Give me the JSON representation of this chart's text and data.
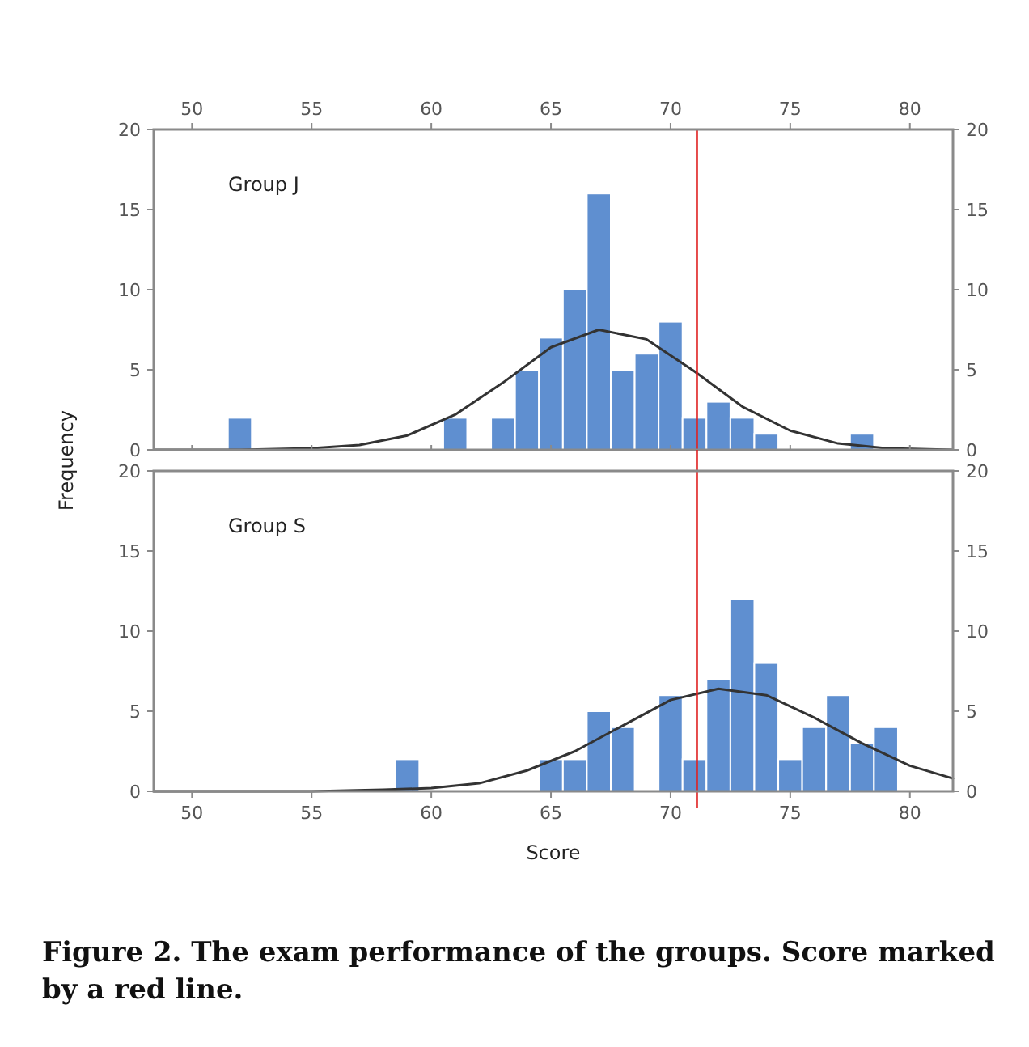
{
  "chart_data": [
    {
      "type": "histogram",
      "title": "Group J",
      "ylabel": "Frequency",
      "xlim": [
        48.4,
        81.8
      ],
      "xticks": [
        50,
        55,
        60,
        65,
        70,
        75,
        80
      ],
      "tick_labels": "y",
      "x2lim": [
        48.4,
        81.8
      ],
      "x2ticks": [
        50,
        55,
        60,
        65,
        70,
        75,
        80
      ],
      "ylim": [
        0,
        20
      ],
      "yticks": [
        0,
        5,
        10,
        15,
        20
      ],
      "y2lim": [
        0,
        20
      ],
      "y2ticks": [
        0,
        5,
        10,
        15,
        20
      ],
      "series": [
        {
          "color": "#5f8fd0",
          "bins": [
            51.5,
            52.5,
            53.5,
            54.5,
            55.5,
            56.5,
            57.5,
            58.5,
            59.5,
            60.5,
            61.5,
            62.5,
            63.5,
            64.5,
            65.5,
            66.5,
            67.5,
            68.5,
            69.5,
            70.5,
            71.5,
            72.5,
            73.5,
            74.5,
            75.5,
            76.5,
            77.5,
            78.5
          ],
          "values": [
            2,
            0,
            0,
            0,
            0,
            0,
            0,
            0,
            0,
            2,
            0,
            2,
            5,
            7,
            10,
            16,
            5,
            6,
            8,
            2,
            3,
            2,
            1,
            0,
            0,
            0,
            1
          ]
        },
        {
          "type": "line",
          "color": "#333333",
          "x": [
            48.4,
            52,
            55,
            57,
            59,
            61,
            63,
            65,
            67,
            69,
            71,
            73,
            75,
            77,
            79,
            81.8
          ],
          "values": [
            0,
            0,
            0.1,
            0.3,
            0.9,
            2.2,
            4.2,
            6.4,
            7.5,
            6.9,
            4.9,
            2.7,
            1.2,
            0.4,
            0.1,
            0
          ]
        }
      ],
      "ref_lines": [
        {
          "axis": "x",
          "value": 71.1,
          "color": "#e02020"
        }
      ]
    },
    {
      "type": "histogram",
      "title": "Group S",
      "xlabel": "Score",
      "xlim": [
        48.4,
        81.8
      ],
      "xticks": [
        50,
        55,
        60,
        65,
        70,
        75,
        80
      ],
      "ylim": [
        0,
        20
      ],
      "yticks": [
        0,
        5,
        10,
        15,
        20
      ],
      "y2lim": [
        0,
        20
      ],
      "y2ticks": [
        0,
        5,
        10,
        15,
        20
      ],
      "series": [
        {
          "color": "#5f8fd0",
          "bins": [
            58.5,
            59.5,
            60.5,
            61.5,
            62.5,
            63.5,
            64.5,
            65.5,
            66.5,
            67.5,
            68.5,
            69.5,
            70.5,
            71.5,
            72.5,
            73.5,
            74.5,
            75.5,
            76.5,
            77.5,
            78.5,
            79.5
          ],
          "values": [
            2,
            0,
            0,
            0,
            0,
            0,
            2,
            2,
            5,
            4,
            0,
            6,
            2,
            7,
            12,
            8,
            2,
            4,
            6,
            3,
            4
          ]
        },
        {
          "type": "line",
          "color": "#333333",
          "x": [
            48.4,
            55,
            58,
            60,
            62,
            64,
            66,
            68,
            70,
            72,
            74,
            76,
            78,
            80,
            81.8
          ],
          "values": [
            0,
            0,
            0.1,
            0.2,
            0.5,
            1.3,
            2.5,
            4.1,
            5.7,
            6.4,
            6,
            4.6,
            3,
            1.6,
            0.8
          ]
        }
      ],
      "ref_lines": [
        {
          "axis": "x",
          "value": 71.1,
          "color": "#e02020"
        }
      ],
      "annotations": [
        "Figure 2. The exam performance of the groups. Score marked by a red line."
      ]
    }
  ]
}
